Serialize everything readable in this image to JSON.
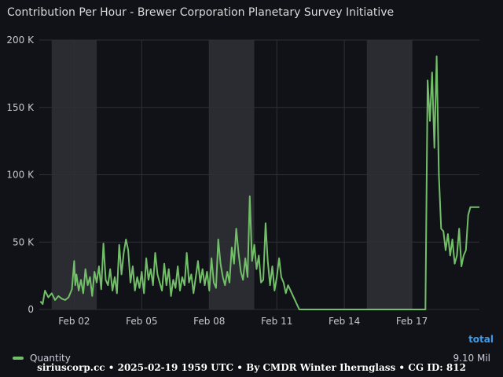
{
  "panel": {
    "title": "Contribution Per Hour - Brewer Corporation Planetary Survey Initiative"
  },
  "chart_data": {
    "type": "line",
    "title": "Contribution Per Hour - Brewer Corporation Planetary Survey Initiative",
    "xlabel": "",
    "ylabel": "",
    "x_tick_labels": [
      "Feb 02",
      "Feb 05",
      "Feb 08",
      "Feb 11",
      "Feb 14",
      "Feb 17"
    ],
    "x_tick_days": [
      2,
      5,
      8,
      11,
      14,
      17
    ],
    "xlim_days": [
      31.45,
      19.7
    ],
    "y_tick_labels": [
      "0",
      "50 K",
      "100 K",
      "150 K",
      "200 K"
    ],
    "y_tick_values": [
      0,
      50000,
      100000,
      150000,
      200000
    ],
    "ylim": [
      0,
      200000
    ],
    "grid": true,
    "weekend_bands_days": [
      [
        1,
        3
      ],
      [
        8,
        10
      ],
      [
        15,
        17
      ]
    ],
    "series": [
      {
        "name": "Quantity",
        "color": "#73bf69",
        "x_days": [
          31.5,
          31.6,
          31.7,
          31.85,
          32.0,
          32.15,
          32.3,
          32.45,
          32.6,
          32.75,
          32.9,
          33.0,
          33.05,
          33.1,
          33.2,
          33.3,
          33.4,
          33.5,
          33.6,
          33.7,
          33.8,
          33.9,
          34.0,
          34.1,
          34.2,
          34.3,
          34.4,
          34.5,
          34.6,
          34.7,
          34.8,
          34.9,
          35.0,
          35.1,
          35.2,
          35.3,
          35.4,
          35.5,
          35.6,
          35.7,
          35.8,
          35.9,
          36.0,
          36.1,
          36.2,
          36.3,
          36.4,
          36.5,
          36.6,
          36.7,
          36.8,
          36.9,
          37.0,
          37.1,
          37.2,
          37.3,
          37.4,
          37.5,
          37.6,
          37.7,
          37.8,
          37.9,
          38.0,
          38.1,
          38.2,
          38.3,
          38.4,
          38.5,
          38.6,
          38.7,
          38.8,
          38.9,
          39.0,
          39.1,
          39.2,
          39.3,
          39.4,
          39.5,
          39.6,
          39.7,
          39.8,
          39.9,
          40.0,
          40.1,
          40.2,
          40.3,
          40.4,
          40.5,
          40.6,
          40.7,
          40.8,
          40.9,
          41.0,
          41.1,
          41.2,
          41.3,
          41.4,
          41.5,
          41.6,
          41.7,
          41.8,
          41.9,
          42.0,
          42.1,
          42.2,
          42.3,
          42.4,
          42.5,
          43.0,
          45.0,
          47.0,
          48.0,
          48.6,
          48.7,
          48.8,
          48.9,
          49.0,
          49.1,
          49.2,
          49.3,
          49.4,
          49.5,
          49.6,
          49.7,
          49.8,
          49.9,
          50.0,
          50.1,
          50.2,
          50.3,
          50.4,
          50.5,
          50.6,
          50.7,
          50.8,
          50.9,
          51.0
        ],
        "values": [
          6000,
          4000,
          14000,
          9000,
          12000,
          7000,
          10000,
          8000,
          7000,
          9000,
          15000,
          36000,
          18000,
          26000,
          14000,
          22000,
          12000,
          30000,
          18000,
          24000,
          10000,
          28000,
          20000,
          32000,
          15000,
          49000,
          22000,
          18000,
          30000,
          14000,
          24000,
          12000,
          48000,
          26000,
          42000,
          52000,
          44000,
          20000,
          32000,
          14000,
          24000,
          16000,
          28000,
          12000,
          38000,
          22000,
          30000,
          18000,
          42000,
          26000,
          20000,
          14000,
          34000,
          18000,
          30000,
          10000,
          22000,
          16000,
          32000,
          14000,
          24000,
          18000,
          42000,
          20000,
          26000,
          12000,
          24000,
          36000,
          20000,
          30000,
          18000,
          28000,
          14000,
          38000,
          20000,
          16000,
          52000,
          34000,
          24000,
          18000,
          28000,
          20000,
          46000,
          34000,
          60000,
          42000,
          28000,
          22000,
          38000,
          24000,
          84000,
          36000,
          48000,
          30000,
          40000,
          20000,
          22000,
          64000,
          36000,
          18000,
          32000,
          14000,
          24000,
          38000,
          24000,
          20000,
          12000,
          18000,
          0,
          0,
          0,
          0,
          0,
          170000,
          140000,
          176000,
          120000,
          188000,
          100000,
          60000,
          58000,
          44000,
          56000,
          40000,
          52000,
          34000,
          40000,
          60000,
          32000,
          40000,
          44000,
          70000,
          76000,
          76000,
          76000,
          76000,
          76000
        ]
      }
    ],
    "legend": [
      {
        "name": "Quantity",
        "color": "#73bf69"
      }
    ],
    "legend_placement": "bottom-left"
  },
  "legend": {
    "total_header": "total",
    "series_name": "Quantity",
    "total_value": "9.10 Mil"
  },
  "footer": {
    "text": "siriuscorp.cc • 2025-02-19 1959 UTC • By CMDR Winter Ihernglass • CG ID: 812"
  }
}
